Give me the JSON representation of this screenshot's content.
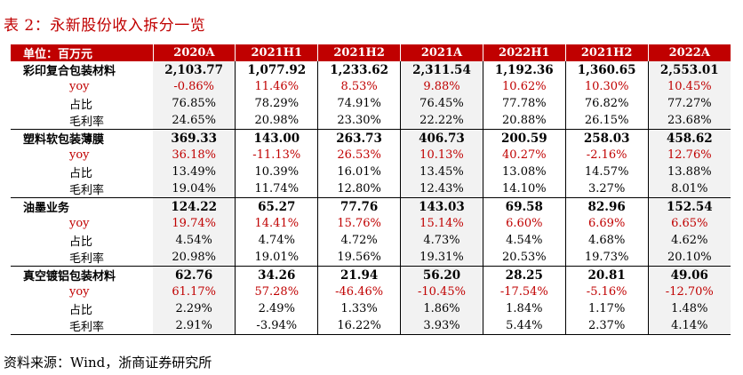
{
  "title": "表 2：永新股份收入拆分一览",
  "header": {
    "unit_label": "单位：百万元",
    "columns": [
      "2020A",
      "2021H1",
      "2021H2",
      "2021A",
      "2022H1",
      "2021H2",
      "2022A"
    ]
  },
  "groups": [
    {
      "name": "彩印复合包装材料",
      "values": [
        "2,103.77",
        "1,077.92",
        "1,233.62",
        "2,311.54",
        "1,192.36",
        "1,360.65",
        "2,553.01"
      ],
      "rows": [
        {
          "label": "yoy",
          "values": [
            "-0.86%",
            "11.46%",
            "8.53%",
            "9.88%",
            "10.62%",
            "10.30%",
            "10.45%"
          ]
        },
        {
          "label": "占比",
          "values": [
            "76.85%",
            "78.29%",
            "74.91%",
            "76.45%",
            "77.78%",
            "76.82%",
            "77.27%"
          ]
        },
        {
          "label": "毛利率",
          "values": [
            "24.65%",
            "20.98%",
            "23.30%",
            "22.22%",
            "20.88%",
            "26.15%",
            "23.68%"
          ]
        }
      ]
    },
    {
      "name": "塑料软包装薄膜",
      "values": [
        "369.33",
        "143.00",
        "263.73",
        "406.73",
        "200.59",
        "258.03",
        "458.62"
      ],
      "rows": [
        {
          "label": "yoy",
          "values": [
            "36.18%",
            "-11.13%",
            "26.53%",
            "10.13%",
            "40.27%",
            "-2.16%",
            "12.76%"
          ]
        },
        {
          "label": "占比",
          "values": [
            "13.49%",
            "10.39%",
            "16.01%",
            "13.45%",
            "13.08%",
            "14.57%",
            "13.88%"
          ]
        },
        {
          "label": "毛利率",
          "values": [
            "19.04%",
            "11.74%",
            "12.80%",
            "12.43%",
            "14.10%",
            "3.27%",
            "8.01%"
          ]
        }
      ]
    },
    {
      "name": "油墨业务",
      "values": [
        "124.22",
        "65.27",
        "77.76",
        "143.03",
        "69.58",
        "82.96",
        "152.54"
      ],
      "rows": [
        {
          "label": "yoy",
          "values": [
            "19.74%",
            "14.41%",
            "15.76%",
            "15.14%",
            "6.60%",
            "6.69%",
            "6.65%"
          ]
        },
        {
          "label": "占比",
          "values": [
            "4.54%",
            "4.74%",
            "4.72%",
            "4.73%",
            "4.54%",
            "4.68%",
            "4.62%"
          ]
        },
        {
          "label": "毛利率",
          "values": [
            "20.98%",
            "19.01%",
            "19.56%",
            "19.31%",
            "20.53%",
            "19.73%",
            "20.10%"
          ]
        }
      ]
    },
    {
      "name": "真空镀铝包装材料",
      "values": [
        "62.76",
        "34.26",
        "21.94",
        "56.20",
        "28.25",
        "20.81",
        "49.06"
      ],
      "rows": [
        {
          "label": "yoy",
          "values": [
            "61.17%",
            "57.28%",
            "-46.46%",
            "-10.45%",
            "-17.54%",
            "-5.16%",
            "-12.70%"
          ]
        },
        {
          "label": "占比",
          "values": [
            "2.29%",
            "2.49%",
            "1.33%",
            "1.86%",
            "1.84%",
            "1.17%",
            "1.48%"
          ]
        },
        {
          "label": "毛利率",
          "values": [
            "2.91%",
            "-3.94%",
            "16.22%",
            "3.93%",
            "5.44%",
            "2.37%",
            "4.14%"
          ]
        }
      ]
    }
  ],
  "source": "资料来源：Wind，浙商证券研究所",
  "colors": {
    "accent": "#c00000",
    "shade": "#f2f2f2"
  }
}
